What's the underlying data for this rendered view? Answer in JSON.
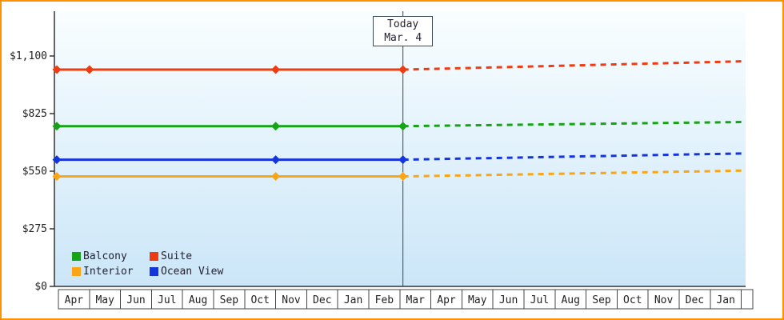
{
  "chart_data": {
    "type": "line",
    "title": "",
    "xlabel": "",
    "ylabel": "",
    "ylim": [
      0,
      1100
    ],
    "y_ticks": [
      {
        "value": 0,
        "label": "$0"
      },
      {
        "value": 275,
        "label": "$275"
      },
      {
        "value": 550,
        "label": "$550"
      },
      {
        "value": 825,
        "label": "$825"
      },
      {
        "value": 1100,
        "label": "$1,100"
      }
    ],
    "months": [
      "Apr",
      "May",
      "Jun",
      "Jul",
      "Aug",
      "Sep",
      "Oct",
      "Nov",
      "Dec",
      "Jan",
      "Feb",
      "Mar",
      "Apr",
      "May",
      "Jun",
      "Jul",
      "Aug",
      "Sep",
      "Oct",
      "Nov",
      "Dec",
      "Jan"
    ],
    "today": {
      "line1": "Today",
      "line2": "Mar. 4",
      "month_index": 11
    },
    "series": [
      {
        "name": "Balcony",
        "color": "#16a316",
        "history_value": 765,
        "forecast_end_value": 785,
        "marker_months": [
          0,
          7
        ]
      },
      {
        "name": "Suite",
        "color": "#ee3b11",
        "history_value": 1035,
        "forecast_end_value": 1075,
        "marker_months": [
          0,
          1,
          7
        ]
      },
      {
        "name": "Interior",
        "color": "#f9a516",
        "history_value": 525,
        "forecast_end_value": 553,
        "marker_months": [
          0,
          7
        ]
      },
      {
        "name": "Ocean View",
        "color": "#1535dc",
        "history_value": 605,
        "forecast_end_value": 635,
        "marker_months": [
          0,
          7
        ]
      }
    ],
    "legend_position": "bottom-left",
    "grid": false,
    "colors": {
      "plot_bg_top": "#f9feff",
      "plot_bg_bottom": "#cbe6f8",
      "frame_border": "#ff9100",
      "axis": "#333333",
      "today_line": "#444444",
      "box_border": "#444444",
      "text": "#222222"
    }
  }
}
